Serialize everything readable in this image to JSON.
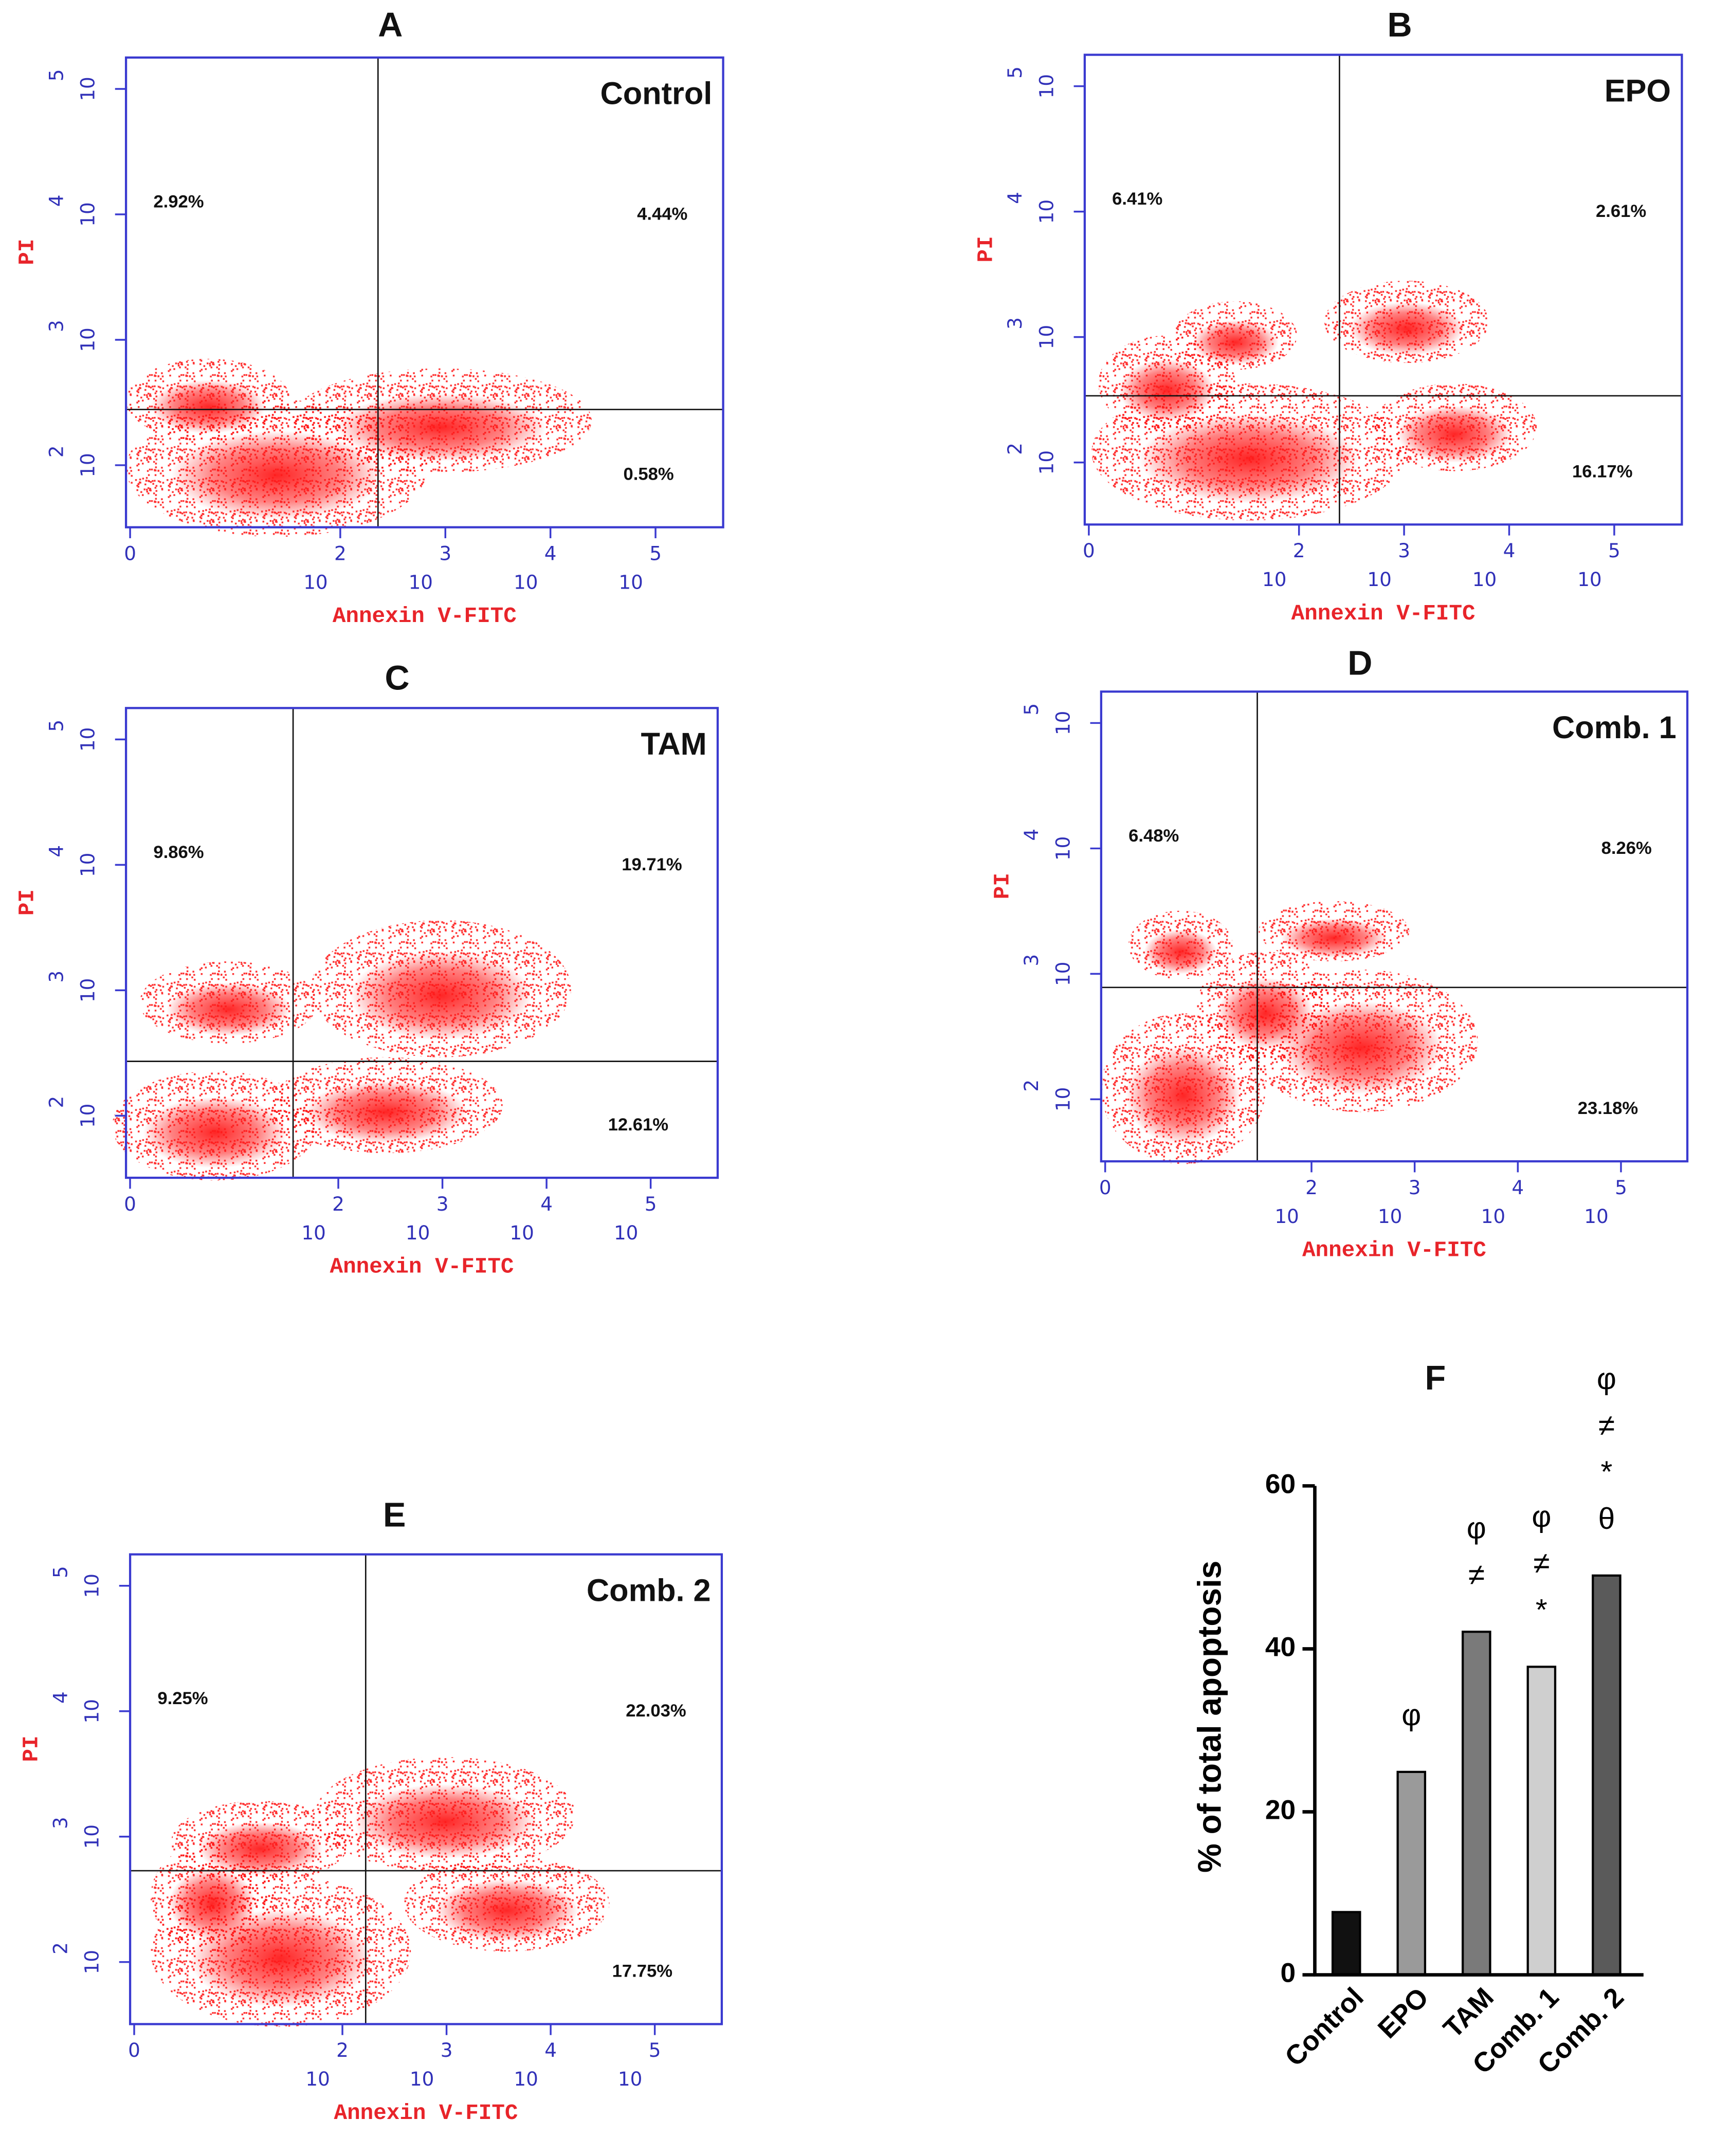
{
  "chart_data": [
    {
      "type": "flow",
      "panel": "A",
      "title": "Control",
      "x_label": "Annexin V-FITC",
      "y_label": "PI",
      "log": true,
      "xlim": [
        0.914,
        440000
      ],
      "ylim": [
        32,
        178000
      ],
      "xticks": [
        {
          "value": 1,
          "label": "0"
        },
        {
          "value": 100,
          "label": "10",
          "exponent": "2"
        },
        {
          "value": 1000,
          "label": "10",
          "exponent": "3"
        },
        {
          "value": 10000,
          "label": "10",
          "exponent": "4"
        },
        {
          "value": 100000,
          "label": "10",
          "exponent": "5"
        }
      ],
      "yticks": [
        {
          "value": 100,
          "label": "10",
          "exponent": "2"
        },
        {
          "value": 1000,
          "label": "10",
          "exponent": "3"
        },
        {
          "value": 10000,
          "label": "10",
          "exponent": "4"
        },
        {
          "value": 100000,
          "label": "10",
          "exponent": "5"
        }
      ],
      "values": [
        2.92,
        4.44,
        0.58
      ],
      "value_labels": [
        "2.92%",
        "4.44%",
        "0.58%"
      ],
      "color": "#ff1a1a"
    },
    {
      "type": "flow",
      "panel": "B",
      "title": "EPO",
      "x_label": "Annexin V-FITC",
      "y_label": "PI",
      "log": true,
      "xlim": [
        0.914,
        440000
      ],
      "ylim": [
        32,
        178000
      ],
      "xticks": [
        {
          "value": 1,
          "label": "0"
        },
        {
          "value": 100,
          "label": "10",
          "exponent": "2"
        },
        {
          "value": 1000,
          "label": "10",
          "exponent": "3"
        },
        {
          "value": 10000,
          "label": "10",
          "exponent": "4"
        },
        {
          "value": 100000,
          "label": "10",
          "exponent": "5"
        }
      ],
      "yticks": [
        {
          "value": 100,
          "label": "10",
          "exponent": "2"
        },
        {
          "value": 1000,
          "label": "10",
          "exponent": "3"
        },
        {
          "value": 10000,
          "label": "10",
          "exponent": "4"
        },
        {
          "value": 100000,
          "label": "10",
          "exponent": "5"
        }
      ],
      "values": [
        6.41,
        2.61,
        16.17
      ],
      "value_labels": [
        "6.41%",
        "2.61%",
        "16.17%"
      ],
      "color": "#ff1a1a"
    },
    {
      "type": "flow",
      "panel": "C",
      "title": "TAM",
      "x_label": "Annexin V-FITC",
      "y_label": "PI",
      "log": true,
      "xlim": [
        0.914,
        440000
      ],
      "ylim": [
        32,
        178000
      ],
      "xticks": [
        {
          "value": 1,
          "label": "0"
        },
        {
          "value": 100,
          "label": "10",
          "exponent": "2"
        },
        {
          "value": 1000,
          "label": "10",
          "exponent": "3"
        },
        {
          "value": 10000,
          "label": "10",
          "exponent": "4"
        },
        {
          "value": 100000,
          "label": "10",
          "exponent": "5"
        }
      ],
      "yticks": [
        {
          "value": 100,
          "label": "10",
          "exponent": "2"
        },
        {
          "value": 1000,
          "label": "10",
          "exponent": "3"
        },
        {
          "value": 10000,
          "label": "10",
          "exponent": "4"
        },
        {
          "value": 100000,
          "label": "10",
          "exponent": "5"
        }
      ],
      "values": [
        9.86,
        19.71,
        12.61
      ],
      "value_labels": [
        "9.86%",
        "19.71%",
        "12.61%"
      ],
      "color": "#ff1a1a"
    },
    {
      "type": "flow",
      "panel": "D",
      "title": "Comb. 1",
      "x_label": "Annexin V-FITC",
      "y_label": "PI",
      "log": true,
      "xlim": [
        0.914,
        440000
      ],
      "ylim": [
        32,
        178000
      ],
      "xticks": [
        {
          "value": 1,
          "label": "0"
        },
        {
          "value": 100,
          "label": "10",
          "exponent": "2"
        },
        {
          "value": 1000,
          "label": "10",
          "exponent": "3"
        },
        {
          "value": 10000,
          "label": "10",
          "exponent": "4"
        },
        {
          "value": 100000,
          "label": "10",
          "exponent": "5"
        }
      ],
      "yticks": [
        {
          "value": 100,
          "label": "10",
          "exponent": "2"
        },
        {
          "value": 1000,
          "label": "10",
          "exponent": "3"
        },
        {
          "value": 10000,
          "label": "10",
          "exponent": "4"
        },
        {
          "value": 100000,
          "label": "10",
          "exponent": "5"
        }
      ],
      "values": [
        6.48,
        8.26,
        23.18
      ],
      "value_labels": [
        "6.48%",
        "8.26%",
        "23.18%"
      ],
      "color": "#ff1a1a"
    },
    {
      "type": "flow",
      "panel": "E",
      "title": "Comb. 2",
      "x_label": "Annexin V-FITC",
      "y_label": "PI",
      "log": true,
      "xlim": [
        0.914,
        440000
      ],
      "ylim": [
        32,
        178000
      ],
      "xticks": [
        {
          "value": 1,
          "label": "0"
        },
        {
          "value": 100,
          "label": "10",
          "exponent": "2"
        },
        {
          "value": 1000,
          "label": "10",
          "exponent": "3"
        },
        {
          "value": 10000,
          "label": "10",
          "exponent": "4"
        },
        {
          "value": 100000,
          "label": "10",
          "exponent": "5"
        }
      ],
      "yticks": [
        {
          "value": 100,
          "label": "10",
          "exponent": "2"
        },
        {
          "value": 1000,
          "label": "10",
          "exponent": "3"
        },
        {
          "value": 10000,
          "label": "10",
          "exponent": "4"
        },
        {
          "value": 100000,
          "label": "10",
          "exponent": "5"
        }
      ],
      "values": [
        9.25,
        22.03,
        17.75
      ],
      "value_labels": [
        "9.25%",
        "22.03%",
        "17.75%"
      ],
      "color": "#ff1a1a"
    },
    {
      "type": "bar",
      "panel": "F",
      "y_label": "% of total apoptosis",
      "categories": [
        "Control",
        "EPO",
        "TAM",
        "Comb. 1",
        "Comb. 2"
      ],
      "values": [
        7.7,
        24.9,
        42.1,
        37.8,
        49
      ],
      "colors": [
        "#111111",
        "#9a9a9a",
        "#7a7a7a",
        "#cfcfcf",
        "#5a5a5a"
      ],
      "annotations": [
        [],
        [
          "φ"
        ],
        [
          "φ",
          "≠"
        ],
        [
          "φ",
          "≠",
          "*"
        ],
        [
          "φ",
          "≠",
          "*",
          "θ"
        ]
      ],
      "ylim": [
        0,
        60
      ],
      "yticks": [
        0,
        20,
        40,
        60
      ]
    }
  ]
}
